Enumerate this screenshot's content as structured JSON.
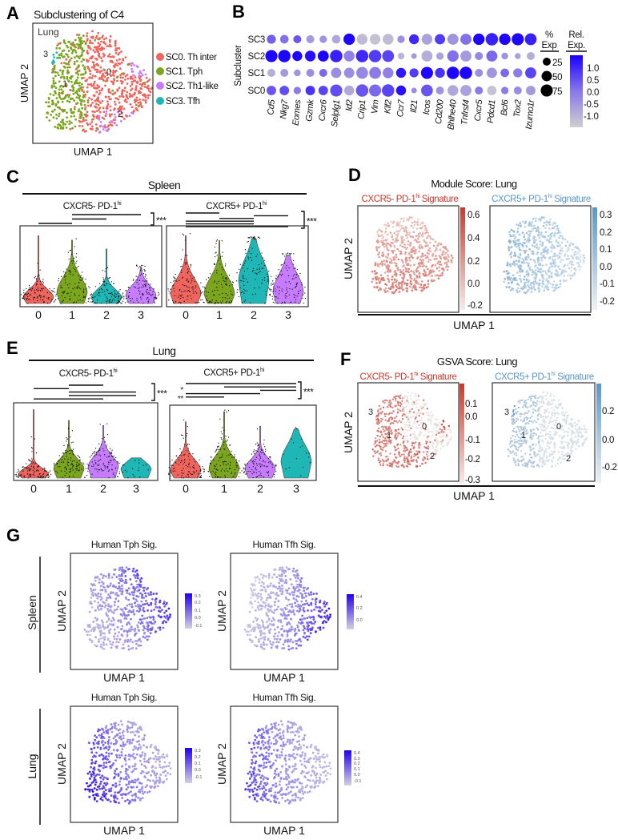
{
  "figure": {
    "letters": {
      "a": "A",
      "b": "B",
      "c": "C",
      "d": "D",
      "e": "E",
      "f": "F",
      "g": "G"
    }
  },
  "chart_data": [
    {
      "panel": "A",
      "type": "scatter",
      "title": "Subclustering of C4",
      "inset_label": "Lung",
      "xlabel": "UMAP 1",
      "ylabel": "UMAP 2",
      "cluster_labels": [
        "0",
        "1",
        "2",
        "3"
      ],
      "legend": [
        {
          "label": "SC0. Th inter",
          "color": "#f0645e"
        },
        {
          "label": "SC1. Tph",
          "color": "#7aa51c"
        },
        {
          "label": "SC2. Th1-like",
          "color": "#c77cff"
        },
        {
          "label": "SC3. Tfh",
          "color": "#1fb7b5"
        }
      ],
      "legend_placement": "right"
    },
    {
      "panel": "B",
      "type": "dot",
      "ylabel": "Subcluster",
      "rows": [
        "SC3",
        "SC2",
        "SC1",
        "SC0"
      ],
      "genes": [
        "Cd5",
        "Nkg7",
        "Eomes",
        "Gzmk",
        "Cxcr6",
        "Selplg1",
        "Id2",
        "Crip1",
        "Vim",
        "Klf2",
        "Ccr7",
        "Il21",
        "Icos",
        "Cd200",
        "Bhlhe40",
        "Tnfrsf4",
        "Cxcr5",
        "Pdcd1",
        "Bcl6",
        "Tox2",
        "Izumo1r"
      ],
      "pct_exp": [
        [
          35,
          30,
          25,
          25,
          20,
          30,
          65,
          55,
          55,
          55,
          20,
          45,
          55,
          50,
          60,
          60,
          65,
          80,
          65,
          75,
          70
        ],
        [
          75,
          80,
          45,
          55,
          60,
          80,
          55,
          80,
          80,
          70,
          15,
          8,
          60,
          20,
          65,
          60,
          25,
          60,
          15,
          10,
          25
        ],
        [
          25,
          25,
          15,
          25,
          25,
          50,
          50,
          70,
          70,
          55,
          45,
          35,
          75,
          45,
          80,
          80,
          25,
          50,
          30,
          35,
          60
        ],
        [
          40,
          40,
          20,
          40,
          40,
          75,
          45,
          80,
          75,
          80,
          45,
          8,
          70,
          25,
          55,
          60,
          25,
          40,
          20,
          25,
          40
        ]
      ],
      "rel_exp": [
        [
          0.3,
          0.1,
          0.4,
          -0.5,
          -0.4,
          -0.7,
          1.3,
          -1.0,
          -1.1,
          -1.0,
          -0.3,
          0.9,
          -0.6,
          0.7,
          -0.4,
          0.1,
          1.3,
          1.0,
          1.3,
          1.3,
          1.0
        ],
        [
          1.3,
          1.3,
          1.3,
          1.2,
          1.3,
          1.0,
          -0.1,
          0.9,
          0.7,
          0.6,
          -0.9,
          -0.5,
          -0.8,
          -0.6,
          0.1,
          -0.5,
          -0.2,
          0.2,
          -0.4,
          -0.6,
          -0.8
        ],
        [
          -0.8,
          -0.5,
          -0.4,
          -0.3,
          0.2,
          -0.3,
          -0.3,
          -0.2,
          0.0,
          -0.1,
          1.1,
          0.7,
          1.3,
          0.8,
          1.3,
          1.3,
          -0.3,
          -0.4,
          0.2,
          0.0,
          0.6
        ],
        [
          0.4,
          0.5,
          0.0,
          0.8,
          0.6,
          0.5,
          -0.7,
          0.4,
          0.2,
          0.6,
          1.2,
          -0.3,
          0.4,
          -0.4,
          -0.7,
          -0.6,
          0.0,
          -1.1,
          0.0,
          -0.3,
          -0.5
        ]
      ],
      "size_legend": {
        "title_line1": "%",
        "title_line2": "Exp",
        "values": [
          "25",
          "50",
          "75"
        ]
      },
      "color_legend": {
        "title_line1": "Rel.",
        "title_line2": "Exp.",
        "ticks": [
          "1.0",
          "0.5",
          "0.0",
          "-0.5",
          "-1.0"
        ],
        "range": [
          -1.3,
          1.35
        ],
        "low_color": "#cfcfcf",
        "high_color": "#1a00ff"
      }
    },
    {
      "panel": "C",
      "type": "violin",
      "title": "Spleen",
      "groups": [
        {
          "label": "CXCR5- PD-1",
          "sup": "hi",
          "categories": [
            "0",
            "1",
            "2",
            "3"
          ],
          "significance": "***",
          "comparisons": [
            [
              1,
              3
            ],
            [
              1,
              2
            ],
            [
              0,
              1
            ]
          ],
          "violins": [
            {
              "max": 0.92,
              "mode": 0.08,
              "spread": 0.16
            },
            {
              "max": 0.86,
              "mode": 0.14,
              "spread": 0.3
            },
            {
              "max": 0.74,
              "mode": 0.07,
              "spread": 0.17
            },
            {
              "max": 0.5,
              "mode": 0.1,
              "spread": 0.2
            }
          ]
        },
        {
          "label": "CXCR5+ PD-1",
          "sup": "hi",
          "categories": [
            "0",
            "1",
            "2",
            "3"
          ],
          "significance": "***",
          "comparisons": [
            [
              0,
              1
            ],
            [
              2,
              3
            ],
            [
              1,
              2
            ],
            [
              0,
              2
            ],
            [
              0,
              2
            ],
            [
              0,
              3
            ]
          ],
          "violins": [
            {
              "max": 0.92,
              "mode": 0.12,
              "spread": 0.3
            },
            {
              "max": 0.84,
              "mode": 0.12,
              "spread": 0.32
            },
            {
              "max": 0.88,
              "mode": 0.3,
              "spread": 0.42
            },
            {
              "max": 0.66,
              "mode": 0.15,
              "spread": 0.35
            }
          ]
        }
      ],
      "colors": [
        "#f0645e",
        "#7aa51c",
        "#1fb7b5",
        "#c77cff"
      ]
    },
    {
      "panel": "D",
      "type": "scatter",
      "title": "Module Score: Lung",
      "xlabel": "UMAP 1",
      "ylabel": "UMAP 2",
      "maps": [
        {
          "label": "CXCR5- PD-1",
          "sup": "hi",
          "suffix": " Signature",
          "color": "#c8392c",
          "low_color": "#f4ecea",
          "ticks": [
            "0.6",
            "0.4",
            "0.2",
            "0.0",
            "-0.2"
          ],
          "range": [
            -0.25,
            0.62
          ]
        },
        {
          "label": "CXCR5+ PD-1",
          "sup": "hi",
          "suffix": " Signature",
          "color": "#5a96c8",
          "low_color": "#eef1f5",
          "ticks": [
            "0.3",
            "0.2",
            "0.1",
            "0.0",
            "-0.1",
            "-0.2"
          ],
          "range": [
            -0.25,
            0.32
          ]
        }
      ]
    },
    {
      "panel": "E",
      "type": "violin",
      "title": "Lung",
      "groups": [
        {
          "label": "CXCR5- PD-1",
          "sup": "hi",
          "categories": [
            "0",
            "1",
            "2",
            "3"
          ],
          "significance": "***",
          "comparisons": [
            [
              1,
              2
            ],
            [
              0,
              1
            ],
            [
              1,
              3
            ],
            [
              1,
              3
            ],
            [
              0,
              2
            ]
          ],
          "violins": [
            {
              "max": 0.95,
              "mode": 0.05,
              "spread": 0.12
            },
            {
              "max": 0.8,
              "mode": 0.12,
              "spread": 0.2
            },
            {
              "max": 0.73,
              "mode": 0.15,
              "spread": 0.22
            },
            {
              "max": 0.28,
              "mode": 0.12,
              "spread": 0.15,
              "sparse": true
            }
          ]
        },
        {
          "label": "CXCR5+ PD-1",
          "sup": "hi",
          "categories": [
            "0",
            "1",
            "2",
            "3"
          ],
          "significance": "***",
          "comparisons": [
            [
              0,
              3
            ],
            [
              1,
              3
            ],
            [
              2,
              3
            ],
            [
              0,
              2
            ],
            [
              0,
              1
            ]
          ],
          "extra_marks": [
            "*",
            "**"
          ],
          "violins": [
            {
              "max": 0.78,
              "mode": 0.1,
              "spread": 0.22
            },
            {
              "max": 0.92,
              "mode": 0.12,
              "spread": 0.25
            },
            {
              "max": 0.72,
              "mode": 0.12,
              "spread": 0.2
            },
            {
              "max": 0.68,
              "mode": 0.22,
              "spread": 0.33,
              "sparse": true
            }
          ]
        }
      ],
      "colors": [
        "#f0645e",
        "#7aa51c",
        "#c77cff",
        "#1fb7b5"
      ]
    },
    {
      "panel": "F",
      "type": "scatter",
      "title": "GSVA Score: Lung",
      "xlabel": "UMAP 1",
      "ylabel": "UMAP 2",
      "cluster_labels": [
        "3",
        "0",
        "1",
        "2"
      ],
      "maps": [
        {
          "label": "CXCR5- PD-1",
          "sup": "hi",
          "suffix": " Signature",
          "color": "#c8392c",
          "low_color": "#ebebeb",
          "ticks": [
            "0.1",
            "0.0",
            "-0.1",
            "-0.2",
            "-0.3"
          ],
          "range": [
            -0.35,
            0.18
          ]
        },
        {
          "label": "CXCR5+ PD-1",
          "sup": "hi",
          "suffix": " Signature",
          "color": "#5a96c8",
          "low_color": "#ebebeb",
          "ticks": [
            "0.2",
            "0.0",
            "-0.2"
          ],
          "range": [
            -0.35,
            0.3
          ]
        }
      ]
    },
    {
      "panel": "G",
      "type": "scatter",
      "xlabel": "UMAP 1",
      "ylabel": "UMAP 2",
      "rows": [
        "Spleen",
        "Lung"
      ],
      "plots": [
        {
          "tissue": "Spleen",
          "title": "Human Tph Sig.",
          "ticks": [
            "0.3",
            "0.2",
            "0.1",
            "0.0",
            "-0.1"
          ]
        },
        {
          "tissue": "Spleen",
          "title": "Human Tfh Sig.",
          "ticks": [
            "0.4",
            "0.2",
            "0.0"
          ]
        },
        {
          "tissue": "Lung",
          "title": "Human Tph Sig.",
          "ticks": [
            "0.3",
            "0.2",
            "0.1",
            "0.0",
            "-0.1"
          ]
        },
        {
          "tissue": "Lung",
          "title": "Human Tfh Sig.",
          "ticks": [
            "0.4",
            "0.3",
            "0.2",
            "0.1",
            "0.0",
            "-0.1"
          ]
        }
      ],
      "low_color": "#d4d0e0",
      "high_color": "#2200ee"
    }
  ]
}
